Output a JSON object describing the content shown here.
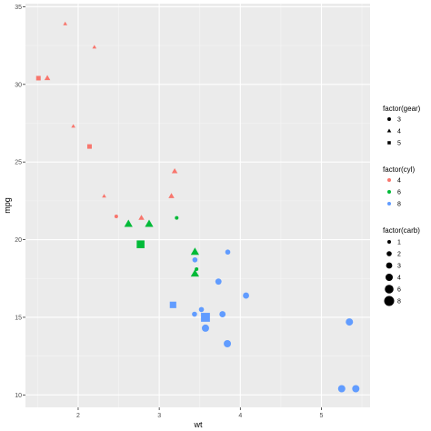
{
  "chart_data": {
    "type": "scatter",
    "xlabel": "wt",
    "ylabel": "mpg",
    "xlim": [
      1.35,
      5.6
    ],
    "ylim": [
      9.2,
      35.2
    ],
    "x_ticks": [
      2,
      3,
      4,
      5
    ],
    "y_ticks": [
      10,
      15,
      20,
      25,
      30,
      35
    ],
    "grid": true,
    "legend_placement": "right",
    "legends": {
      "gear": {
        "title": "factor(gear)",
        "levels": [
          "3",
          "4",
          "5"
        ],
        "shapes": {
          "3": "circle",
          "4": "triangle",
          "5": "square"
        }
      },
      "cyl": {
        "title": "factor(cyl)",
        "levels": [
          "4",
          "6",
          "8"
        ],
        "colors": {
          "4": "#F8766D",
          "6": "#00BA38",
          "8": "#619CFF"
        }
      },
      "carb": {
        "title": "factor(carb)",
        "levels": [
          "1",
          "2",
          "3",
          "4",
          "6",
          "8"
        ]
      }
    },
    "points": [
      {
        "x": 1.84,
        "y": 33.9,
        "gear": "4",
        "cyl": "4",
        "carb": "1"
      },
      {
        "x": 2.2,
        "y": 32.4,
        "gear": "4",
        "cyl": "4",
        "carb": "1"
      },
      {
        "x": 1.51,
        "y": 30.4,
        "gear": "5",
        "cyl": "4",
        "carb": "2"
      },
      {
        "x": 1.62,
        "y": 30.4,
        "gear": "4",
        "cyl": "4",
        "carb": "2"
      },
      {
        "x": 1.94,
        "y": 27.3,
        "gear": "4",
        "cyl": "4",
        "carb": "1"
      },
      {
        "x": 2.14,
        "y": 26.0,
        "gear": "5",
        "cyl": "4",
        "carb": "2"
      },
      {
        "x": 3.19,
        "y": 24.4,
        "gear": "4",
        "cyl": "4",
        "carb": "2"
      },
      {
        "x": 2.32,
        "y": 22.8,
        "gear": "4",
        "cyl": "4",
        "carb": "1"
      },
      {
        "x": 3.15,
        "y": 22.8,
        "gear": "4",
        "cyl": "4",
        "carb": "2"
      },
      {
        "x": 2.47,
        "y": 21.5,
        "gear": "3",
        "cyl": "4",
        "carb": "1"
      },
      {
        "x": 2.78,
        "y": 21.4,
        "gear": "4",
        "cyl": "4",
        "carb": "2"
      },
      {
        "x": 2.62,
        "y": 21.0,
        "gear": "4",
        "cyl": "6",
        "carb": "4"
      },
      {
        "x": 2.875,
        "y": 21.0,
        "gear": "4",
        "cyl": "6",
        "carb": "4"
      },
      {
        "x": 3.215,
        "y": 21.4,
        "gear": "3",
        "cyl": "6",
        "carb": "1"
      },
      {
        "x": 2.77,
        "y": 19.7,
        "gear": "5",
        "cyl": "6",
        "carb": "6"
      },
      {
        "x": 3.44,
        "y": 19.2,
        "gear": "4",
        "cyl": "6",
        "carb": "4"
      },
      {
        "x": 3.46,
        "y": 18.1,
        "gear": "3",
        "cyl": "6",
        "carb": "1"
      },
      {
        "x": 3.44,
        "y": 17.8,
        "gear": "4",
        "cyl": "6",
        "carb": "4"
      },
      {
        "x": 3.44,
        "y": 18.7,
        "gear": "3",
        "cyl": "8",
        "carb": "2"
      },
      {
        "x": 3.845,
        "y": 19.2,
        "gear": "3",
        "cyl": "8",
        "carb": "2"
      },
      {
        "x": 3.73,
        "y": 17.3,
        "gear": "3",
        "cyl": "8",
        "carb": "3"
      },
      {
        "x": 4.07,
        "y": 16.4,
        "gear": "3",
        "cyl": "8",
        "carb": "3"
      },
      {
        "x": 3.17,
        "y": 15.8,
        "gear": "5",
        "cyl": "8",
        "carb": "4"
      },
      {
        "x": 3.52,
        "y": 15.5,
        "gear": "3",
        "cyl": "8",
        "carb": "2"
      },
      {
        "x": 3.435,
        "y": 15.2,
        "gear": "3",
        "cyl": "8",
        "carb": "2"
      },
      {
        "x": 3.57,
        "y": 15.0,
        "gear": "5",
        "cyl": "8",
        "carb": "8"
      },
      {
        "x": 3.78,
        "y": 15.2,
        "gear": "3",
        "cyl": "8",
        "carb": "3"
      },
      {
        "x": 3.57,
        "y": 14.3,
        "gear": "3",
        "cyl": "8",
        "carb": "4"
      },
      {
        "x": 3.84,
        "y": 13.3,
        "gear": "3",
        "cyl": "8",
        "carb": "4"
      },
      {
        "x": 5.345,
        "y": 14.7,
        "gear": "3",
        "cyl": "8",
        "carb": "4"
      },
      {
        "x": 5.25,
        "y": 10.4,
        "gear": "3",
        "cyl": "8",
        "carb": "4"
      },
      {
        "x": 5.424,
        "y": 10.4,
        "gear": "3",
        "cyl": "8",
        "carb": "4"
      }
    ]
  }
}
